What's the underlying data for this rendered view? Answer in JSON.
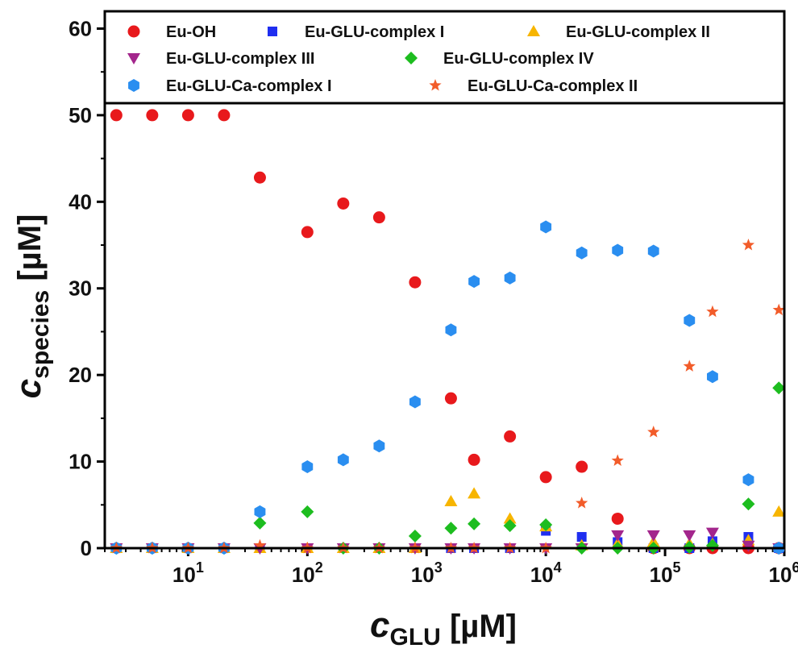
{
  "chart_data": {
    "type": "scatter",
    "x_scale": "log",
    "xlim": [
      2,
      1000000
    ],
    "ylim": [
      0,
      62
    ],
    "xlabel": {
      "main": "c",
      "sub": "GLU",
      "unit": " [µM]"
    },
    "ylabel": {
      "main": "c",
      "sub": "species",
      "unit": " [µM]"
    },
    "x_ticks": [
      {
        "value": 10,
        "base": "10",
        "exp": "1"
      },
      {
        "value": 100,
        "base": "10",
        "exp": "2"
      },
      {
        "value": 1000,
        "base": "10",
        "exp": "3"
      },
      {
        "value": 10000,
        "base": "10",
        "exp": "4"
      },
      {
        "value": 100000,
        "base": "10",
        "exp": "5"
      },
      {
        "value": 1000000,
        "base": "10",
        "exp": "6"
      }
    ],
    "y_ticks": [
      0,
      10,
      20,
      30,
      40,
      50,
      60
    ],
    "legend_position": "top",
    "x": [
      2.5,
      5,
      10,
      20,
      40,
      100,
      200,
      400,
      800,
      1600,
      2500,
      5000,
      10000,
      20000,
      40000,
      80000,
      160000,
      250000,
      500000,
      900000
    ],
    "series": [
      {
        "name": "Eu-OH",
        "marker": "circle",
        "color": "#e8191c",
        "values": [
          50,
          50,
          50,
          50,
          42.8,
          36.5,
          39.8,
          38.2,
          30.7,
          17.3,
          10.2,
          12.9,
          8.2,
          9.4,
          3.4,
          0,
          0,
          0,
          0,
          0
        ]
      },
      {
        "name": "Eu-GLU-complex I",
        "marker": "square",
        "color": "#1f2ef0",
        "values": [
          0,
          0,
          0,
          0,
          0,
          0,
          0,
          0,
          0,
          0,
          0,
          0,
          2.0,
          1.3,
          0.7,
          0,
          0,
          0.8,
          1.3,
          0
        ]
      },
      {
        "name": "Eu-GLU-complex II",
        "marker": "triangle-up",
        "color": "#f7b500",
        "values": [
          0,
          0,
          0,
          0,
          0,
          0,
          0,
          0,
          0,
          5.4,
          6.3,
          3.4,
          2.5,
          0.3,
          0.5,
          0.7,
          0.5,
          0.5,
          0.9,
          4.2
        ]
      },
      {
        "name": "Eu-GLU-complex III",
        "marker": "triangle-down",
        "color": "#a3268c",
        "values": [
          0,
          0,
          0,
          0,
          0,
          0,
          0,
          0,
          0,
          0,
          0,
          0,
          0,
          0,
          1.5,
          1.5,
          1.5,
          1.8,
          0.3,
          0
        ]
      },
      {
        "name": "Eu-GLU-complex IV",
        "marker": "diamond",
        "color": "#1dbd1f",
        "values": [
          0,
          0,
          0,
          0,
          2.9,
          4.2,
          0,
          0,
          1.4,
          2.3,
          2.8,
          2.6,
          2.7,
          0,
          0,
          0,
          0.1,
          0.3,
          5.1,
          18.5
        ]
      },
      {
        "name": "Eu-GLU-Ca-complex I",
        "marker": "hexagon",
        "color": "#2a8ef0",
        "values": [
          0,
          0,
          0,
          0,
          4.2,
          9.4,
          10.2,
          11.8,
          16.9,
          25.2,
          30.8,
          31.2,
          37.1,
          34.1,
          34.4,
          34.3,
          26.3,
          19.8,
          7.9,
          0
        ]
      },
      {
        "name": "Eu-GLU-Ca-complex II",
        "marker": "star",
        "color": "#f25c2a",
        "values": [
          0,
          0,
          0,
          0,
          0.3,
          0,
          0,
          0,
          0,
          0,
          0,
          0,
          0,
          5.2,
          10.1,
          13.4,
          21.0,
          27.3,
          35.0,
          27.5
        ]
      }
    ]
  }
}
